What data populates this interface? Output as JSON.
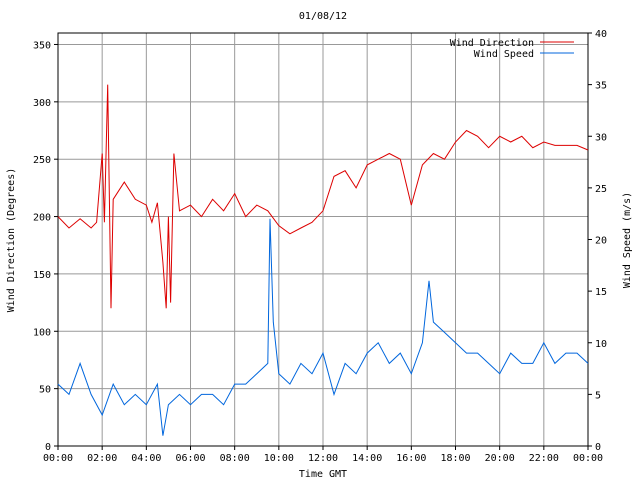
{
  "chart_data": {
    "type": "line",
    "title": "01/08/12",
    "xlabel": "Time GMT",
    "ylabel_left": "Wind Direction (Degrees)",
    "ylabel_right": "Wind Speed (m/s)",
    "x_ticks": [
      "00:00",
      "02:00",
      "04:00",
      "06:00",
      "08:00",
      "10:00",
      "12:00",
      "14:00",
      "16:00",
      "18:00",
      "20:00",
      "22:00",
      "00:00"
    ],
    "xlim_hours": [
      0,
      24
    ],
    "ylim_left": [
      0,
      360
    ],
    "yticks_left": [
      0,
      50,
      100,
      150,
      200,
      250,
      300,
      350
    ],
    "ylim_right": [
      0,
      40
    ],
    "yticks_right": [
      0,
      5,
      10,
      15,
      20,
      25,
      30,
      35,
      40
    ],
    "grid": true,
    "legend_position": "top-right",
    "series": [
      {
        "name": "Wind Direction",
        "axis": "left",
        "color": "#dd0000",
        "x_hours": [
          0,
          0.5,
          1,
          1.5,
          1.75,
          2,
          2.1,
          2.25,
          2.4,
          2.5,
          3,
          3.5,
          4,
          4.25,
          4.5,
          4.75,
          4.9,
          5,
          5.1,
          5.25,
          5.5,
          6,
          6.5,
          7,
          7.5,
          8,
          8.5,
          9,
          9.5,
          10,
          10.5,
          11,
          11.5,
          12,
          12.5,
          13,
          13.5,
          14,
          14.5,
          15,
          15.5,
          16,
          16.5,
          17,
          17.5,
          18,
          18.5,
          19,
          19.5,
          20,
          20.5,
          21,
          21.5,
          22,
          22.5,
          23,
          23.5,
          24
        ],
        "values": [
          200,
          190,
          198,
          190,
          195,
          255,
          195,
          315,
          120,
          215,
          230,
          215,
          210,
          195,
          212,
          160,
          120,
          200,
          125,
          255,
          205,
          210,
          200,
          215,
          205,
          220,
          200,
          210,
          205,
          192,
          185,
          190,
          195,
          205,
          235,
          240,
          225,
          245,
          250,
          255,
          250,
          210,
          245,
          255,
          250,
          265,
          275,
          270,
          260,
          270,
          265,
          270,
          260,
          265,
          262,
          262,
          262,
          258
        ]
      },
      {
        "name": "Wind Speed",
        "axis": "right",
        "color": "#0066dd",
        "x_hours": [
          0,
          0.5,
          1,
          1.5,
          2,
          2.5,
          3,
          3.5,
          4,
          4.5,
          4.75,
          5,
          5.5,
          6,
          6.5,
          7,
          7.5,
          8,
          8.5,
          9,
          9.5,
          9.6,
          9.75,
          10,
          10.5,
          11,
          11.5,
          12,
          12.5,
          13,
          13.5,
          14,
          14.5,
          15,
          15.5,
          16,
          16.5,
          16.8,
          17,
          17.5,
          18,
          18.5,
          19,
          19.5,
          20,
          20.5,
          21,
          21.5,
          22,
          22.5,
          23,
          23.5,
          24
        ],
        "values": [
          6,
          5,
          8,
          5,
          3,
          6,
          4,
          5,
          4,
          6,
          1,
          4,
          5,
          4,
          5,
          5,
          4,
          6,
          6,
          7,
          8,
          22,
          12,
          7,
          6,
          8,
          7,
          9,
          5,
          8,
          7,
          9,
          10,
          8,
          9,
          7,
          10,
          16,
          12,
          11,
          10,
          9,
          9,
          8,
          7,
          9,
          8,
          8,
          10,
          8,
          9,
          9,
          8
        ]
      }
    ]
  }
}
